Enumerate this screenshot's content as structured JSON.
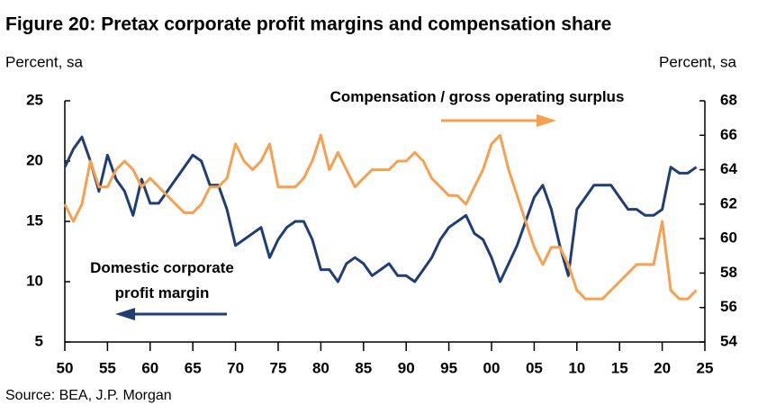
{
  "chart_data": {
    "type": "line",
    "title": "Figure 20: Pretax corporate profit margins and compensation share",
    "ylabel": "Percent, sa",
    "y2label": "Percent, sa",
    "source": "Source: BEA, J.P. Morgan",
    "x": [
      1950,
      1951,
      1952,
      1953,
      1954,
      1955,
      1956,
      1957,
      1958,
      1959,
      1960,
      1961,
      1962,
      1963,
      1964,
      1965,
      1966,
      1967,
      1968,
      1969,
      1970,
      1971,
      1972,
      1973,
      1974,
      1975,
      1976,
      1977,
      1978,
      1979,
      1980,
      1981,
      1982,
      1983,
      1984,
      1985,
      1986,
      1987,
      1988,
      1989,
      1990,
      1991,
      1992,
      1993,
      1994,
      1995,
      1996,
      1997,
      1998,
      1999,
      2000,
      2001,
      2002,
      2003,
      2004,
      2005,
      2006,
      2007,
      2008,
      2009,
      2010,
      2011,
      2012,
      2013,
      2014,
      2015,
      2016,
      2017,
      2018,
      2019,
      2020,
      2021,
      2022,
      2023,
      2024
    ],
    "series": [
      {
        "name": "Domestic corporate profit margin",
        "color": "#1f3f74",
        "axis": "y",
        "values": [
          19.5,
          21,
          22,
          20,
          17.5,
          20.5,
          18.5,
          17.5,
          15.5,
          18.5,
          16.5,
          16.5,
          17.5,
          18.5,
          19.5,
          20.5,
          20,
          18,
          18,
          16,
          13,
          13.5,
          14,
          14.5,
          12,
          13.5,
          14.5,
          15,
          15,
          13.5,
          11,
          11,
          10,
          11.5,
          12,
          11.5,
          10.5,
          11,
          11.5,
          10.5,
          10.5,
          10,
          11,
          12,
          13.5,
          14.5,
          15,
          15.5,
          14,
          13.5,
          12,
          10,
          11.5,
          13,
          15,
          17,
          18,
          16,
          13,
          10.5,
          16,
          17,
          18,
          18,
          18,
          17,
          16,
          16,
          15.5,
          15.5,
          16,
          19.5,
          19,
          19,
          19.5
        ]
      },
      {
        "name": "Compensation / gross operating surplus",
        "color": "#f7a04f",
        "axis": "y2",
        "values": [
          62,
          61,
          62,
          64.5,
          63,
          63,
          64,
          64.5,
          64,
          63,
          63.5,
          63,
          62.5,
          62,
          61.5,
          61.5,
          62,
          63,
          63,
          63.5,
          65.5,
          64.5,
          64,
          64.5,
          65.5,
          63,
          63,
          63,
          63.5,
          64.5,
          66,
          64,
          65,
          64,
          63,
          63.5,
          64,
          64,
          64,
          64.5,
          64.5,
          65,
          64.5,
          63.5,
          63,
          62.5,
          62.5,
          62,
          63,
          64,
          65.5,
          66,
          64,
          62.5,
          61,
          59.5,
          58.5,
          59.5,
          59.5,
          58.5,
          57,
          56.5,
          56.5,
          56.5,
          57,
          57.5,
          58,
          58.5,
          58.5,
          58.5,
          61,
          57,
          56.5,
          56.5,
          57
        ]
      }
    ],
    "xlim": [
      1950,
      2025
    ],
    "xticks": [
      {
        "value": 1950,
        "label": "50"
      },
      {
        "value": 1955,
        "label": "55"
      },
      {
        "value": 1960,
        "label": "60"
      },
      {
        "value": 1965,
        "label": "65"
      },
      {
        "value": 1970,
        "label": "70"
      },
      {
        "value": 1975,
        "label": "75"
      },
      {
        "value": 1980,
        "label": "80"
      },
      {
        "value": 1985,
        "label": "85"
      },
      {
        "value": 1990,
        "label": "90"
      },
      {
        "value": 1995,
        "label": "95"
      },
      {
        "value": 2000,
        "label": "00"
      },
      {
        "value": 2005,
        "label": "05"
      },
      {
        "value": 2010,
        "label": "10"
      },
      {
        "value": 2015,
        "label": "15"
      },
      {
        "value": 2020,
        "label": "20"
      },
      {
        "value": 2025,
        "label": "25"
      }
    ],
    "ylim": [
      5,
      25
    ],
    "yticks": [
      5,
      10,
      15,
      20,
      25
    ],
    "y2lim": [
      54,
      68
    ],
    "y2ticks": [
      54,
      56,
      58,
      60,
      62,
      64,
      66,
      68
    ]
  }
}
